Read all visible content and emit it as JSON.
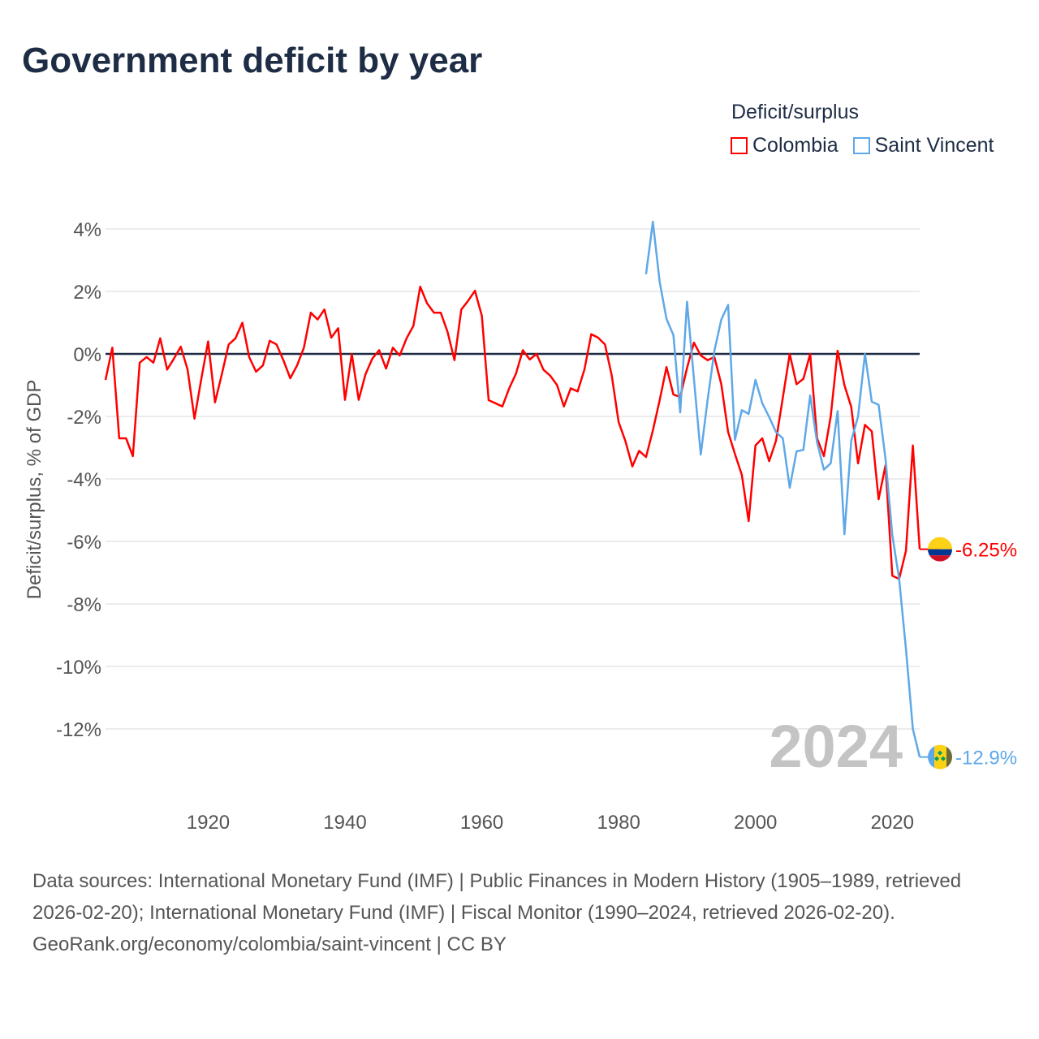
{
  "title": "Government deficit by year",
  "legend": {
    "title": "Deficit/surplus",
    "items": [
      {
        "label": "Colombia",
        "color": "#ff0000"
      },
      {
        "label": "Saint Vincent",
        "color": "#5fa8e8"
      }
    ]
  },
  "watermark_year": "2024",
  "footer": {
    "sources": "Data sources: International Monetary Fund (IMF) | Public Finances in Modern History (1905–1989, retrieved 2026-02-20); International Monetary Fund (IMF) | Fiscal Monitor (1990–2024, retrieved 2026-02-20).",
    "credit": "GeoRank.org/economy/colombia/saint-vincent | CC BY"
  },
  "chart_data": {
    "type": "line",
    "title": "Government deficit by year",
    "xlabel": "",
    "ylabel": "Deficit/surplus, % of GDP",
    "xlim": [
      1905,
      2024
    ],
    "ylim": [
      -13.5,
      4.5
    ],
    "x_ticks": [
      1920,
      1940,
      1960,
      1980,
      2000,
      2020
    ],
    "y_ticks": [
      4,
      2,
      0,
      -2,
      -4,
      -6,
      -8,
      -10,
      -12
    ],
    "y_tick_labels": [
      "4%",
      "2%",
      "0%",
      "-2%",
      "-4%",
      "-6%",
      "-8%",
      "-10%",
      "-12%"
    ],
    "grid": true,
    "legend_position": "top-right",
    "series": [
      {
        "name": "Colombia",
        "color": "#ff0000",
        "start_year": 1905,
        "end_label": "-6.25%",
        "values": [
          -0.83,
          0.2,
          -2.7,
          -2.7,
          -3.27,
          -0.28,
          -0.1,
          -0.28,
          0.5,
          -0.5,
          -0.15,
          0.23,
          -0.5,
          -2.07,
          -0.8,
          0.4,
          -1.55,
          -0.65,
          0.3,
          0.5,
          1.0,
          -0.1,
          -0.57,
          -0.37,
          0.42,
          0.3,
          -0.2,
          -0.78,
          -0.37,
          0.2,
          1.32,
          1.1,
          1.42,
          0.52,
          0.82,
          -1.47,
          0,
          -1.47,
          -0.65,
          -0.15,
          0.12,
          -0.47,
          0.2,
          -0.05,
          0.5,
          0.9,
          2.15,
          1.62,
          1.32,
          1.32,
          0.7,
          -0.2,
          1.42,
          1.7,
          2.02,
          1.22,
          -1.48,
          -1.58,
          -1.68,
          -1.1,
          -0.63,
          0.12,
          -0.18,
          0,
          -0.5,
          -0.7,
          -1.0,
          -1.68,
          -1.1,
          -1.2,
          -0.5,
          0.63,
          0.52,
          0.3,
          -0.7,
          -2.18,
          -2.8,
          -3.6,
          -3.1,
          -3.3,
          -2.45,
          -1.48,
          -0.42,
          -1.3,
          -1.38,
          -0.45,
          0.36,
          -0.05,
          -0.2,
          -0.1,
          -0.97,
          -2.5,
          -3.2,
          -3.87,
          -5.35,
          -2.93,
          -2.7,
          -3.43,
          -2.78,
          -1.4,
          0,
          -0.97,
          -0.8,
          0,
          -2.7,
          -3.27,
          -2.0,
          0.1,
          -1.0,
          -1.7,
          -3.5,
          -2.27,
          -2.48,
          -4.65,
          -3.57,
          -7.1,
          -7.2,
          -6.3,
          -2.93,
          -6.25
        ]
      },
      {
        "name": "Saint Vincent",
        "color": "#5fa8e8",
        "start_year": 1984,
        "end_label": "-12.9%",
        "values": [
          2.55,
          4.23,
          2.3,
          1.12,
          0.6,
          -1.87,
          1.67,
          -0.8,
          -3.22,
          -1.48,
          0.1,
          1.1,
          1.57,
          -2.75,
          -1.8,
          -1.92,
          -0.83,
          -1.58,
          -2.02,
          -2.5,
          -2.7,
          -4.28,
          -3.12,
          -3.07,
          -1.33,
          -2.83,
          -3.7,
          -3.5,
          -1.83,
          -5.77,
          -2.78,
          -2.0,
          0,
          -1.53,
          -1.63,
          -3.35,
          -5.8,
          -7.2,
          -9.45,
          -12.0,
          -12.9
        ]
      }
    ]
  }
}
